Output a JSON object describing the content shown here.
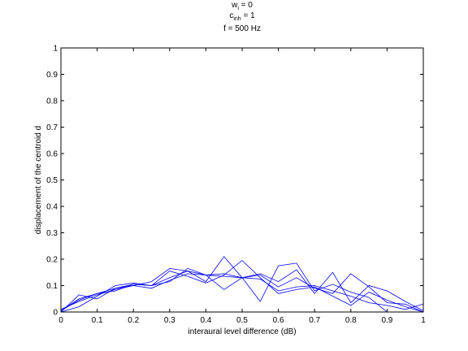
{
  "chart_data": {
    "type": "line",
    "title_lines": [
      {
        "base": "w",
        "sub": "i",
        "rest": " = 0"
      },
      {
        "base": "c",
        "sub": "inh",
        "rest": " = 1"
      },
      {
        "base": "f = 500 Hz",
        "sub": "",
        "rest": ""
      }
    ],
    "xlabel": "interaural level difference (dB)",
    "ylabel": "displacement of the centroid d",
    "xlim": [
      0,
      1
    ],
    "ylim": [
      0,
      1
    ],
    "xticks": [
      "0",
      "0.1",
      "0.2",
      "0.3",
      "0.4",
      "0.5",
      "0.6",
      "0.7",
      "0.8",
      "0.9",
      "1"
    ],
    "yticks": [
      "0",
      "0.1",
      "0.2",
      "0.3",
      "0.4",
      "0.5",
      "0.6",
      "0.7",
      "0.8",
      "0.9",
      "1"
    ],
    "grid": false,
    "color": "#0000ff",
    "x": [
      0,
      0.05,
      0.1,
      0.15,
      0.2,
      0.25,
      0.3,
      0.35,
      0.4,
      0.45,
      0.5,
      0.55,
      0.6,
      0.65,
      0.7,
      0.75,
      0.8,
      0.85,
      0.9,
      0.95,
      1.0
    ],
    "series": [
      {
        "values": [
          0,
          0.065,
          0.05,
          0.09,
          0.1,
          0.115,
          0.165,
          0.155,
          0.115,
          0.21,
          0.13,
          0.145,
          0.115,
          0.16,
          0.07,
          0.15,
          0.035,
          0.1,
          0.08,
          0.04,
          0.005
        ]
      },
      {
        "values": [
          0.01,
          0.04,
          0.065,
          0.085,
          0.1,
          0.09,
          0.12,
          0.145,
          0.14,
          0.135,
          0.13,
          0.125,
          0.08,
          0.095,
          0.1,
          0.08,
          0.06,
          0.035,
          0.025,
          0.01,
          0.03
        ]
      },
      {
        "values": [
          0.005,
          0.045,
          0.07,
          0.08,
          0.105,
          0.1,
          0.155,
          0.135,
          0.11,
          0.14,
          0.195,
          0.13,
          0.07,
          0.085,
          0.095,
          0.06,
          0.025,
          0.075,
          0.045,
          0.02,
          0
        ]
      },
      {
        "values": [
          0,
          0.02,
          0.06,
          0.1,
          0.11,
          0.1,
          0.115,
          0.165,
          0.14,
          0.085,
          0.13,
          0.04,
          0.175,
          0.185,
          0.08,
          0.105,
          0.075,
          0.055,
          0,
          0,
          0
        ]
      },
      {
        "values": [
          0.005,
          0.05,
          0.07,
          0.09,
          0.105,
          0.1,
          0.13,
          0.155,
          0.14,
          0.145,
          0.13,
          0.14,
          0.095,
          0.13,
          0.09,
          0.07,
          0.145,
          0.095,
          0.035,
          0.03,
          0
        ]
      }
    ]
  }
}
